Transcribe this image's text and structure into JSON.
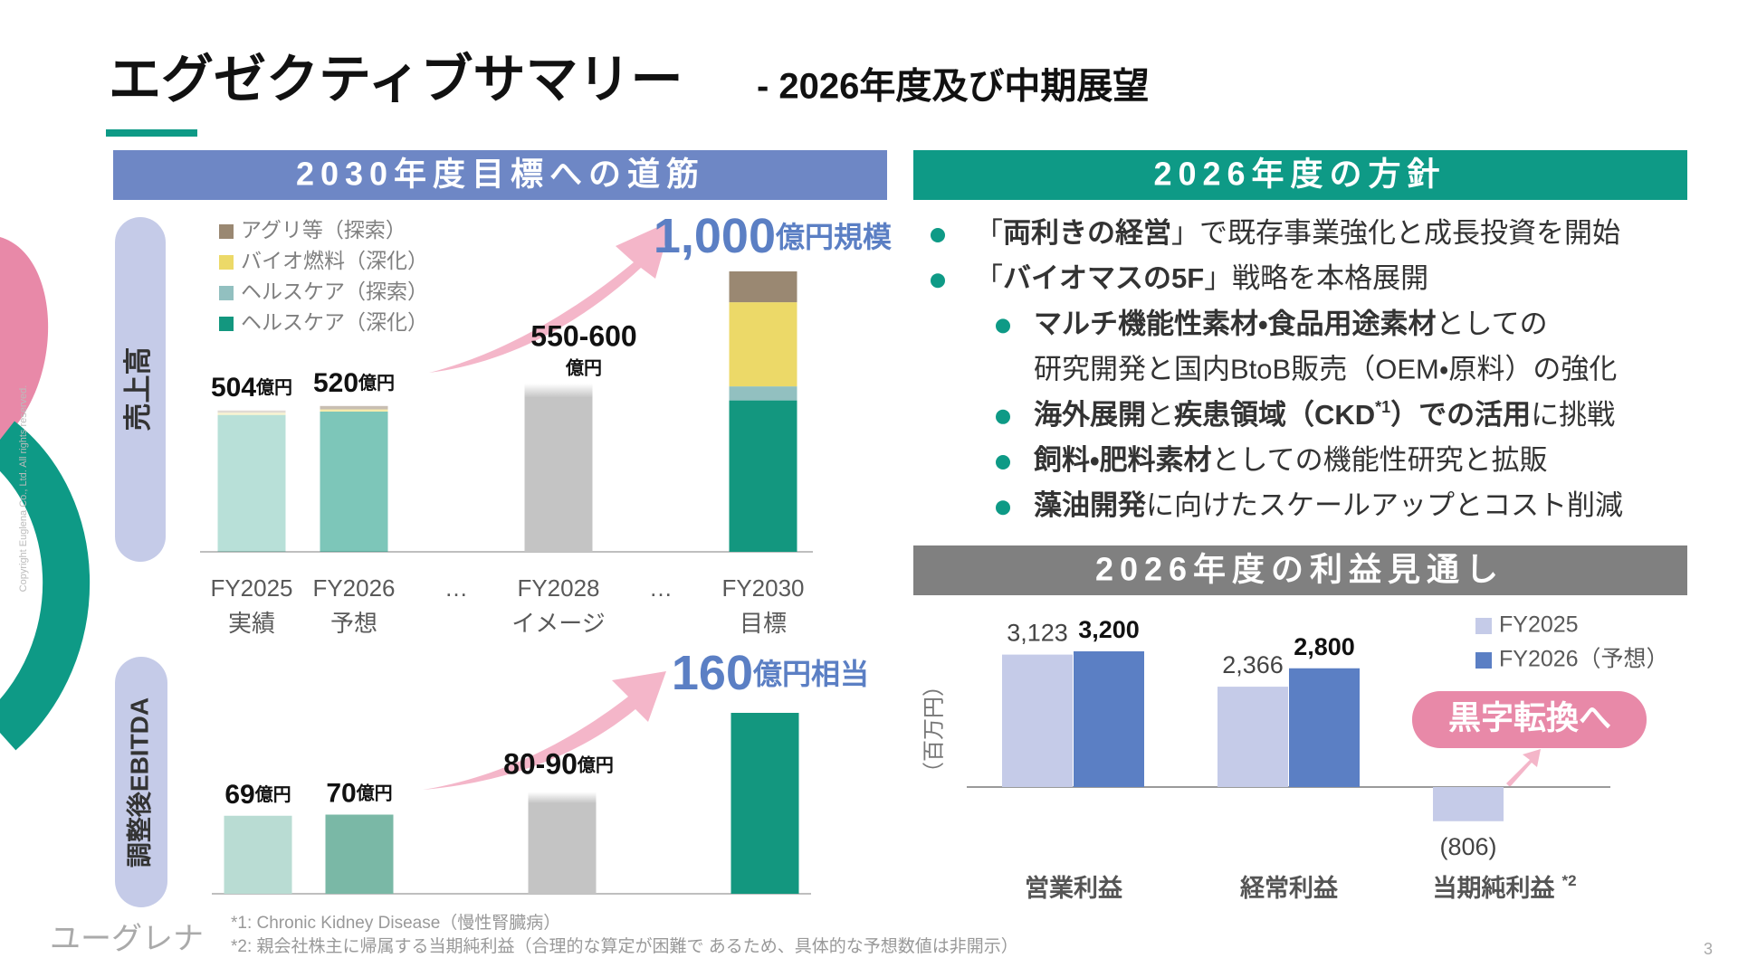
{
  "header": {
    "title": "エグゼクティブサマリー",
    "subtitle": "- 2026年度及び中期展望"
  },
  "roadmap": {
    "heading": "2030年度目標への道筋",
    "revenue_label": "売上高",
    "ebitda_label": "調整後EBITDA"
  },
  "policy": {
    "heading": "2026年度の方針",
    "items": [
      {
        "lines": [
          [
            {
              "text": "「"
            },
            {
              "text": "両利きの経営",
              "bold": true
            },
            {
              "text": "」で既存事業強化と成長投資を開始"
            }
          ]
        ]
      },
      {
        "lines": [
          [
            {
              "text": "「"
            },
            {
              "text": "バイオマスの5F",
              "bold": true
            },
            {
              "text": "」戦略を本格展開"
            }
          ]
        ]
      },
      {
        "sub": true,
        "lines": [
          [
            {
              "text": "マルチ機能性素材・食品用途素材",
              "bold": true
            },
            {
              "text": "としての"
            }
          ],
          [
            {
              "text": "研究開発と国内BtoB販売（OEM・原料）の強化"
            }
          ]
        ]
      },
      {
        "sub": true,
        "lines": [
          [
            {
              "text": "海外展開",
              "bold": true
            },
            {
              "text": "と"
            },
            {
              "text": "疾患領域（CKD",
              "bold": true
            },
            {
              "text": "*1",
              "bold": true,
              "sup": true
            },
            {
              "text": "）での活用",
              "bold": true
            },
            {
              "text": "に挑戦"
            }
          ]
        ]
      },
      {
        "sub": true,
        "lines": [
          [
            {
              "text": "飼料・肥料素材",
              "bold": true
            },
            {
              "text": "としての機能性研究と拡販"
            }
          ]
        ]
      },
      {
        "sub": true,
        "lines": [
          [
            {
              "text": "藻油開発",
              "bold": true
            },
            {
              "text": "に向けたスケールアップとコスト削減"
            }
          ]
        ]
      }
    ]
  },
  "profit_outlook": {
    "heading": "2026年度の利益見通し"
  },
  "chart_data": [
    {
      "type": "bar",
      "stacked": true,
      "categories": [
        [
          "FY2025",
          "実績"
        ],
        [
          "FY2026",
          "予想"
        ],
        [
          "…"
        ],
        [
          "FY2028",
          "イメージ"
        ],
        [
          "…"
        ],
        [
          "FY2030",
          "目標"
        ]
      ],
      "series": [
        {
          "name": "ヘルスケア（深化）",
          "color": "#13977f",
          "values": [
            488,
            500,
            null,
            null,
            null,
            540
          ]
        },
        {
          "name": "ヘルスケア（探索）",
          "color": "#92c0c0",
          "values": [
            0,
            0,
            null,
            null,
            null,
            50
          ]
        },
        {
          "name": "バイオ燃料（深化）",
          "color": "#ecd968",
          "values": [
            8,
            8,
            null,
            null,
            null,
            300
          ]
        },
        {
          "name": "アグリ等（探索）",
          "color": "#9a8872",
          "values": [
            8,
            12,
            null,
            null,
            null,
            110
          ]
        }
      ],
      "opacity": [
        0.3,
        0.55,
        null,
        null,
        null,
        1
      ],
      "totals": [
        504,
        520,
        null,
        null,
        null,
        1000
      ],
      "total_labels": [
        "504",
        "520",
        null,
        null,
        null,
        "1,000"
      ],
      "total_units": [
        "億円",
        "億円",
        null,
        null,
        null,
        "億円規模"
      ],
      "ranges": [
        null,
        null,
        null,
        [
          550,
          600
        ],
        null,
        null
      ],
      "range_labels": [
        null,
        null,
        null,
        "550-600",
        null,
        null
      ],
      "range_units": [
        null,
        null,
        null,
        "億円",
        null,
        null
      ],
      "range_color": "#c4c4c4"
    },
    {
      "type": "bar",
      "values": [
        69,
        70,
        null,
        null,
        null,
        160
      ],
      "colors": [
        "#b9dcd3",
        "#7ab8a6",
        null,
        null,
        null,
        "#13977f"
      ],
      "units": [
        "億円",
        "億円",
        null,
        null,
        null,
        "億円相当"
      ],
      "ranges": [
        null,
        null,
        null,
        [
          80,
          90
        ],
        null,
        null
      ],
      "range_labels": [
        null,
        null,
        null,
        "80-90",
        null,
        null
      ],
      "range_units": [
        null,
        null,
        null,
        "億円",
        null,
        null
      ],
      "range_color": "#c4c4c4"
    },
    {
      "type": "bar",
      "categories": [
        "営業利益",
        "経常利益",
        "当期純利益"
      ],
      "category_notes": [
        null,
        null,
        "*2"
      ],
      "y_label": "（百万円）",
      "series": [
        {
          "name": "FY2025",
          "color": "#c5cbe8",
          "values": [
            3123,
            2366,
            -806
          ],
          "value_labels": [
            "3,123",
            "2,366",
            "(806)"
          ]
        },
        {
          "name": "FY2026（予想）",
          "color": "#5b7fc4",
          "values": [
            3200,
            2800,
            null
          ],
          "value_labels": [
            "3,200",
            "2,800",
            null
          ]
        }
      ],
      "legend": "upper right",
      "annotation": "黒字転換へ",
      "annotation_color": "#e889a8"
    }
  ],
  "footnotes": [
    "*1:  Chronic Kidney Disease（慢性腎臓病）",
    "*2:  親会社株主に帰属する当期純利益（合理的な算定が困難で あるため、具体的な予想数値は非開示）"
  ],
  "logo": "ユーグレナ",
  "copyright": "Copyright Euglena Co., Ltd. All rights reserved.",
  "page_number": 3
}
